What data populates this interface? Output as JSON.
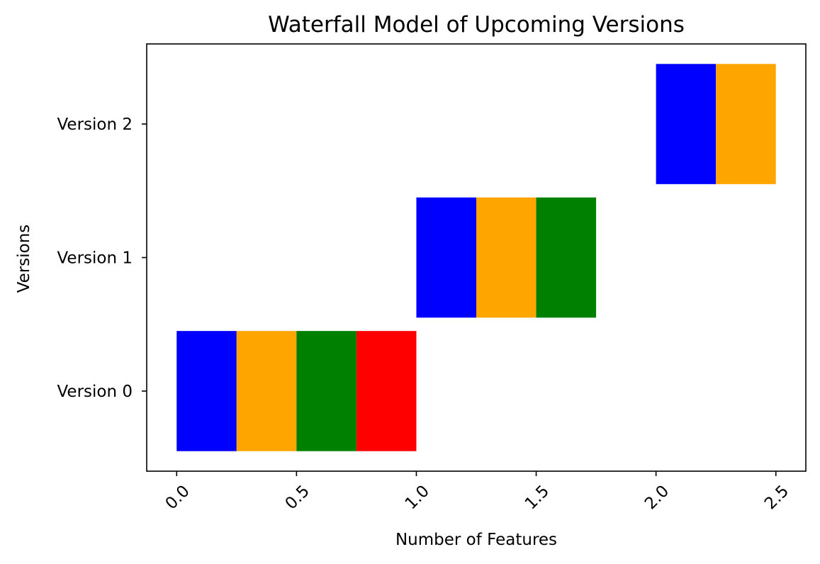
{
  "chart_data": {
    "type": "bar",
    "orientation": "horizontal",
    "title": "Waterfall Model of Upcoming Versions",
    "xlabel": "Number of Features",
    "ylabel": "Versions",
    "xlim": [
      -0.125,
      2.625
    ],
    "ylim": [
      -0.6,
      2.6
    ],
    "x_ticks": [
      0.0,
      0.5,
      1.0,
      1.5,
      2.0,
      2.5
    ],
    "x_tick_labels": [
      "0.0",
      "0.5",
      "1.0",
      "1.5",
      "2.0",
      "2.5"
    ],
    "x_tick_rotation": 45,
    "categories": [
      "Version 0",
      "Version 1",
      "Version 2"
    ],
    "bar_height": 0.9,
    "grid": false,
    "segments": [
      {
        "category": "Version 0",
        "start": 0.0,
        "width": 0.25,
        "color": "#0000ff"
      },
      {
        "category": "Version 0",
        "start": 0.25,
        "width": 0.25,
        "color": "#ffa500"
      },
      {
        "category": "Version 0",
        "start": 0.5,
        "width": 0.25,
        "color": "#008000"
      },
      {
        "category": "Version 0",
        "start": 0.75,
        "width": 0.25,
        "color": "#ff0000"
      },
      {
        "category": "Version 1",
        "start": 1.0,
        "width": 0.25,
        "color": "#0000ff"
      },
      {
        "category": "Version 1",
        "start": 1.25,
        "width": 0.25,
        "color": "#ffa500"
      },
      {
        "category": "Version 1",
        "start": 1.5,
        "width": 0.25,
        "color": "#008000"
      },
      {
        "category": "Version 2",
        "start": 2.0,
        "width": 0.25,
        "color": "#0000ff"
      },
      {
        "category": "Version 2",
        "start": 2.25,
        "width": 0.25,
        "color": "#ffa500"
      }
    ]
  }
}
